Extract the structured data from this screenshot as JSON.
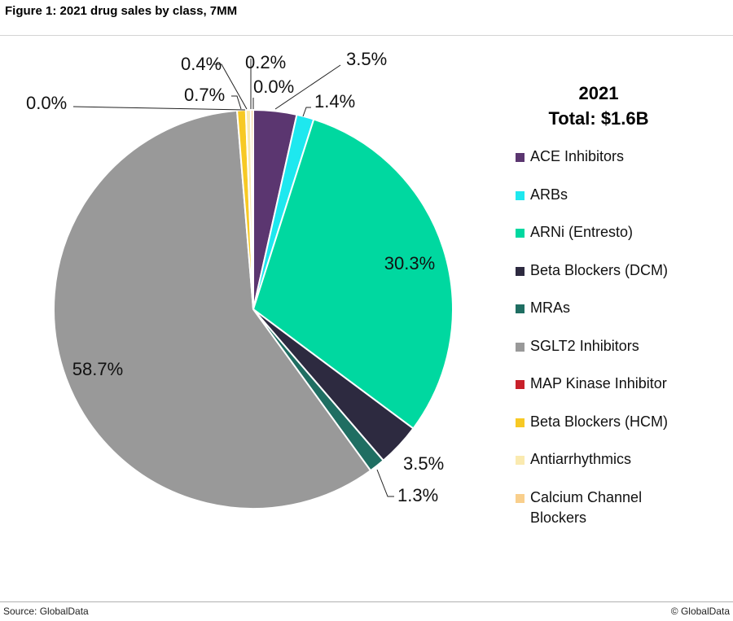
{
  "figure": {
    "title": "Figure 1: 2021 drug sales by class, 7MM",
    "source": "Source: GlobalData",
    "copyright": "© GlobalData"
  },
  "chart_data": {
    "type": "pie",
    "title": "2021",
    "subtitle": "Total: $1.6B",
    "total": "$1.6B",
    "unit": "percent of total sales",
    "start": "12 o'clock, clockwise",
    "legend_position": "right",
    "slices": [
      {
        "name": "ACE Inhibitors",
        "value": 3.5,
        "label": "3.5%",
        "color": "#5b3670"
      },
      {
        "name": "ARBs",
        "value": 1.4,
        "label": "1.4%",
        "color": "#1ee8ef"
      },
      {
        "name": "ARNi (Entresto)",
        "value": 30.3,
        "label": "30.3%",
        "color": "#00d8a0"
      },
      {
        "name": "Beta Blockers (DCM)",
        "value": 3.5,
        "label": "3.5%",
        "color": "#2d2a40"
      },
      {
        "name": "MRAs",
        "value": 1.3,
        "label": "1.3%",
        "color": "#1f6e62"
      },
      {
        "name": "SGLT2 Inhibitors",
        "value": 58.7,
        "label": "58.7%",
        "color": "#999999"
      },
      {
        "name": "MAP Kinase Inhibitor",
        "value": 0.0,
        "label": "0.0%",
        "color": "#c8202a"
      },
      {
        "name": "Beta Blockers (HCM)",
        "value": 0.7,
        "label": "0.7%",
        "color": "#f7c925"
      },
      {
        "name": "Antiarrhythmics",
        "value": 0.4,
        "label": "0.4%",
        "color": "#faeab0"
      },
      {
        "name": "Calcium Channel Blockers",
        "value": 0.2,
        "label": "0.2%",
        "color": "#f9cf8c"
      }
    ],
    "extra_labels": [
      "0.0%"
    ]
  }
}
